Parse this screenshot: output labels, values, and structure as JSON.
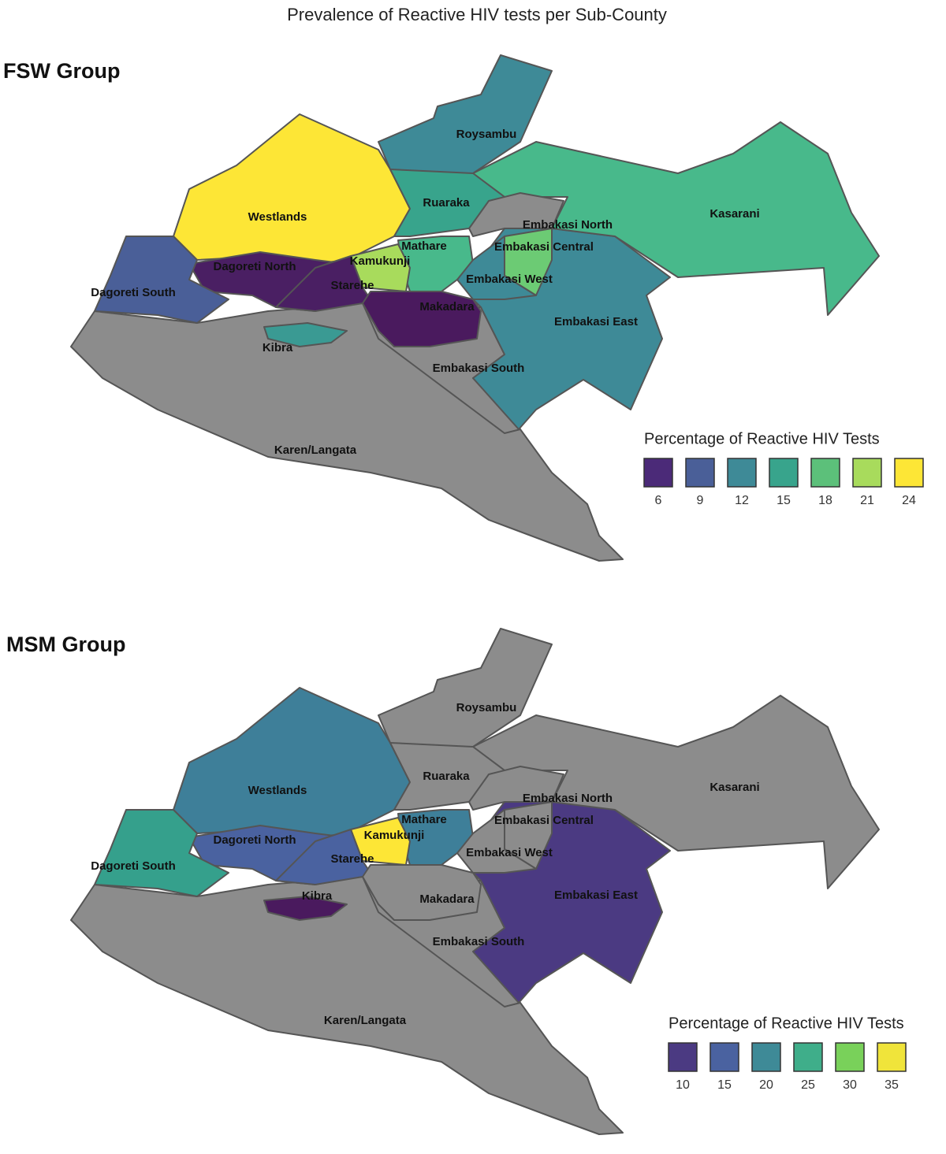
{
  "title": "Prevalence of Reactive HIV tests per Sub-County",
  "panels": [
    {
      "title": "FSW Group",
      "regions": [
        {
          "name": "Karen/Langata",
          "color": "#8c8c8c"
        },
        {
          "name": "Embakasi South",
          "color": "#8c8c8c"
        },
        {
          "name": "Embakasi East",
          "color": "#3e8a97"
        },
        {
          "name": "Kasarani",
          "color": "#48b98b"
        },
        {
          "name": "Roysambu",
          "color": "#3e8a97"
        },
        {
          "name": "Westlands",
          "color": "#fde636"
        },
        {
          "name": "Ruaraka",
          "color": "#38a48c"
        },
        {
          "name": "Embakasi North",
          "color": "#8c8c8c"
        },
        {
          "name": "Mathare",
          "color": "#48b98b"
        },
        {
          "name": "Kamukunji",
          "color": "#a8db5c"
        },
        {
          "name": "Embakasi Central",
          "color": "#6ccb74"
        },
        {
          "name": "Embakasi West",
          "color": "#3e8a97"
        },
        {
          "name": "Dagoreti North",
          "color": "#4a1f63"
        },
        {
          "name": "Starehe",
          "color": "#4a1f63"
        },
        {
          "name": "Makadara",
          "color": "#4a1a5e"
        },
        {
          "name": "Dagoreti South",
          "color": "#4a5f98"
        },
        {
          "name": "Kibra",
          "color": "#3a9a93"
        }
      ],
      "legend": {
        "title": "Percentage of Reactive HIV Tests",
        "ticks": [
          6,
          9,
          12,
          15,
          18,
          21,
          24
        ],
        "colors": [
          "#4b2a78",
          "#4a5f98",
          "#3e8a97",
          "#38a48c",
          "#5cc07a",
          "#a8db5c",
          "#fde636"
        ]
      }
    },
    {
      "title": "MSM Group",
      "regions": [
        {
          "name": "Karen/Langata",
          "color": "#8c8c8c"
        },
        {
          "name": "Embakasi South",
          "color": "#8c8c8c"
        },
        {
          "name": "Embakasi East",
          "color": "#4b3a82"
        },
        {
          "name": "Kasarani",
          "color": "#8c8c8c"
        },
        {
          "name": "Roysambu",
          "color": "#8c8c8c"
        },
        {
          "name": "Westlands",
          "color": "#3e7f99"
        },
        {
          "name": "Ruaraka",
          "color": "#8c8c8c"
        },
        {
          "name": "Embakasi North",
          "color": "#8c8c8c"
        },
        {
          "name": "Mathare",
          "color": "#3e7f99"
        },
        {
          "name": "Kamukunji",
          "color": "#fde636"
        },
        {
          "name": "Embakasi Central",
          "color": "#8c8c8c"
        },
        {
          "name": "Embakasi West",
          "color": "#8c8c8c"
        },
        {
          "name": "Dagoreti North",
          "color": "#4a62a0"
        },
        {
          "name": "Starehe",
          "color": "#4a62a0"
        },
        {
          "name": "Makadara",
          "color": "#8c8c8c"
        },
        {
          "name": "Dagoreti South",
          "color": "#35a08c"
        },
        {
          "name": "Kibra",
          "color": "#4a1a5e"
        }
      ],
      "legend": {
        "title": "Percentage of Reactive HIV Tests",
        "ticks": [
          10,
          15,
          20,
          25,
          30,
          35
        ],
        "colors": [
          "#4b3a82",
          "#4a62a0",
          "#3e8a97",
          "#3fae8a",
          "#79d15a",
          "#f0e43a"
        ]
      }
    }
  ]
}
